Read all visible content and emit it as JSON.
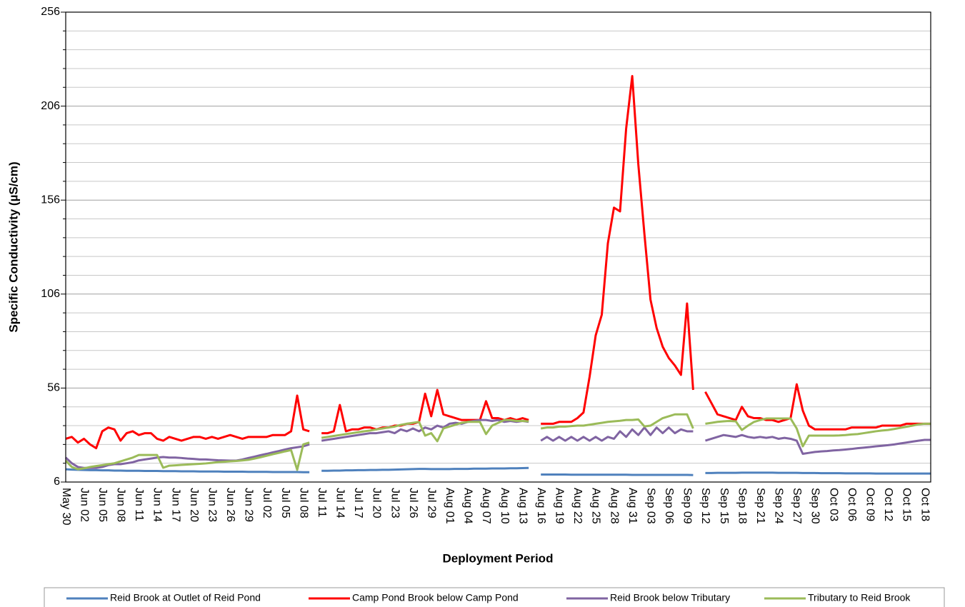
{
  "chart_data": {
    "type": "line",
    "x_label": "Deployment Period",
    "y_label": "Specific Conductivity (µS/cm)",
    "categories": [
      "May 30",
      null,
      null,
      "Jun 02",
      null,
      null,
      "Jun 05",
      null,
      null,
      "Jun 08",
      null,
      null,
      "Jun 11",
      null,
      null,
      "Jun 14",
      null,
      null,
      "Jun 17",
      null,
      null,
      "Jun 20",
      null,
      null,
      "Jun 23",
      null,
      null,
      "Jun 26",
      null,
      null,
      "Jun 29",
      null,
      null,
      "Jul 02",
      null,
      null,
      "Jul 05",
      null,
      null,
      "Jul 08",
      null,
      null,
      "Jul 11",
      null,
      null,
      "Jul 14",
      null,
      null,
      "Jul 17",
      null,
      null,
      "Jul 20",
      null,
      null,
      "Jul 23",
      null,
      null,
      "Jul 26",
      null,
      null,
      "Jul 29",
      null,
      null,
      "Aug 01",
      null,
      null,
      "Aug 04",
      null,
      null,
      "Aug 07",
      null,
      null,
      "Aug 10",
      null,
      null,
      "Aug 13",
      null,
      null,
      "Aug 16",
      null,
      null,
      "Aug 19",
      null,
      null,
      "Aug 22",
      null,
      null,
      "Aug 25",
      null,
      null,
      "Aug 28",
      null,
      null,
      "Aug 31",
      null,
      null,
      "Sep 03",
      null,
      null,
      "Sep 06",
      null,
      null,
      "Sep 09",
      null,
      null,
      "Sep 12",
      null,
      null,
      "Sep 15",
      null,
      null,
      "Sep 18",
      null,
      null,
      "Sep 21",
      null,
      null,
      "Sep 24",
      null,
      null,
      "Sep 27",
      null,
      null,
      "Sep 30",
      null,
      null,
      "Oct 03",
      null,
      null,
      "Oct 06",
      null,
      null,
      "Oct 09",
      null,
      null,
      "Oct 12",
      null,
      null,
      "Oct 15",
      null,
      null,
      "Oct 18",
      null
    ],
    "series": [
      {
        "name": "Reid Brook at Outlet of Reid Pond",
        "color": "#4f81bd",
        "values": [
          12.8,
          12.6,
          12.5,
          12.4,
          12.3,
          12.3,
          12.2,
          12.2,
          12.1,
          12.1,
          12.0,
          12.0,
          12.0,
          11.9,
          11.9,
          11.9,
          11.8,
          11.8,
          11.8,
          11.7,
          11.7,
          11.7,
          11.6,
          11.6,
          11.6,
          11.6,
          11.5,
          11.5,
          11.5,
          11.5,
          11.4,
          11.4,
          11.4,
          11.4,
          11.3,
          11.3,
          11.3,
          11.3,
          11.3,
          11.2,
          11.2,
          null,
          12.0,
          12.0,
          12.1,
          12.1,
          12.2,
          12.2,
          12.3,
          12.3,
          12.4,
          12.4,
          12.5,
          12.5,
          12.6,
          12.7,
          12.8,
          12.9,
          13.0,
          13.0,
          12.9,
          12.9,
          12.9,
          12.9,
          13.0,
          13.0,
          13.0,
          13.1,
          13.1,
          13.1,
          13.2,
          13.2,
          13.2,
          13.3,
          13.3,
          13.4,
          13.5,
          null,
          10.0,
          10.0,
          10.0,
          10.0,
          10.0,
          9.9,
          9.9,
          9.9,
          9.9,
          9.9,
          9.9,
          9.9,
          9.9,
          9.9,
          9.9,
          9.8,
          9.8,
          9.8,
          9.8,
          9.8,
          9.8,
          9.8,
          9.8,
          9.8,
          9.8,
          9.7,
          null,
          10.8,
          10.8,
          10.9,
          10.9,
          10.9,
          10.9,
          11.0,
          11.0,
          11.0,
          11.0,
          11.0,
          11.0,
          10.9,
          10.9,
          10.9,
          10.9,
          10.8,
          10.8,
          10.8,
          10.7,
          10.7,
          10.7,
          10.7,
          10.6,
          10.6,
          10.6,
          10.6,
          10.6,
          10.5,
          10.5,
          10.5,
          10.5,
          10.5,
          10.5,
          10.5,
          10.5,
          10.5,
          10.5
        ]
      },
      {
        "name": "Camp Pond Brook below Camp Pond",
        "color": "#ff0000",
        "values": [
          29,
          30,
          27,
          29,
          26,
          24,
          33,
          35,
          34,
          28,
          32,
          33,
          31,
          32,
          32,
          29,
          28,
          30,
          29,
          28,
          29,
          30,
          30,
          29,
          30,
          29,
          30,
          31,
          30,
          29,
          30,
          30,
          30,
          30,
          31,
          31,
          31,
          33,
          52,
          34,
          33,
          null,
          32,
          32,
          33,
          47,
          33,
          34,
          34,
          35,
          35,
          34,
          35,
          35,
          36,
          36,
          37,
          37,
          38,
          53,
          41,
          55,
          42,
          41,
          40,
          39,
          39,
          39,
          39,
          49,
          40,
          40,
          39,
          40,
          39,
          40,
          39,
          null,
          37,
          37,
          37,
          38,
          38,
          38,
          40,
          43,
          62,
          84,
          95,
          133,
          152,
          150,
          194,
          222,
          175,
          138,
          103,
          88,
          78,
          72,
          68,
          63,
          101,
          55,
          null,
          54,
          48,
          42,
          41,
          40,
          39,
          46,
          41,
          40,
          40,
          39,
          39,
          38,
          39,
          40,
          58,
          44,
          36,
          34,
          34,
          34,
          34,
          34,
          34,
          35,
          35,
          35,
          35,
          35,
          36,
          36,
          36,
          36,
          37,
          37,
          37,
          37,
          37
        ]
      },
      {
        "name": "Reid Brook below Tributary",
        "color": "#8064a2",
        "values": [
          19,
          16,
          14,
          13.5,
          13.5,
          13.5,
          14,
          15,
          15.5,
          15.5,
          16,
          16.5,
          17.5,
          18,
          18.5,
          19,
          19.3,
          19,
          19,
          18.8,
          18.5,
          18.3,
          18,
          18,
          17.8,
          17.6,
          17.5,
          17.4,
          17.4,
          18,
          18.8,
          19.5,
          20.3,
          21,
          21.8,
          22.5,
          23.3,
          24,
          24.5,
          25,
          26,
          null,
          28,
          28.5,
          29,
          29.5,
          30,
          30.5,
          31,
          31.5,
          32,
          32,
          32.5,
          33,
          32,
          34,
          33,
          34.5,
          33,
          35,
          34,
          36,
          35,
          37,
          37.5,
          37,
          38,
          38.5,
          39,
          39,
          38.5,
          39,
          38,
          38.5,
          38,
          38.5,
          38,
          null,
          28,
          30,
          28,
          30,
          28,
          30,
          28,
          30,
          28,
          30,
          28,
          30,
          29,
          33,
          30,
          34,
          31,
          35,
          31,
          35,
          32,
          35,
          32,
          34,
          33,
          33,
          null,
          28,
          29,
          30,
          31,
          30.5,
          30,
          31,
          30,
          29.5,
          30,
          29.5,
          30,
          29,
          29.5,
          29,
          28,
          21,
          21.5,
          22,
          22.3,
          22.5,
          22.8,
          23,
          23.3,
          23.6,
          24,
          24.3,
          24.6,
          25,
          25.3,
          25.6,
          26,
          26.5,
          27,
          27.5,
          28,
          28.4,
          28.4
        ]
      },
      {
        "name": "Tributary to Reid Brook",
        "color": "#9bbb59",
        "values": [
          17.4,
          14,
          12.8,
          13.3,
          14,
          14.5,
          15,
          15.5,
          16,
          17,
          18,
          19,
          20.4,
          20.4,
          20.4,
          20.4,
          13.6,
          14.7,
          14.9,
          15.1,
          15.3,
          15.5,
          15.7,
          15.9,
          16.2,
          16.6,
          16.8,
          17,
          17.2,
          17.5,
          17.8,
          18.5,
          19.2,
          20,
          20.8,
          21.5,
          22.3,
          23,
          12.5,
          26,
          27,
          null,
          29.5,
          30,
          30.5,
          31,
          31.5,
          32,
          32.5,
          33,
          33.4,
          34,
          34.5,
          35,
          35.5,
          36.4,
          37,
          37.5,
          38,
          30.7,
          32,
          27.7,
          34.5,
          35.5,
          36.5,
          37.5,
          38,
          38,
          38,
          31.5,
          36,
          37.5,
          39,
          39,
          38.5,
          38.5,
          38.3,
          null,
          34.5,
          35,
          35,
          35.5,
          35.5,
          35.8,
          36,
          36,
          36.5,
          37,
          37.5,
          38,
          38.3,
          38.6,
          39,
          39,
          39.3,
          35.6,
          36,
          38,
          40,
          41,
          42,
          42,
          42,
          34.5,
          null,
          37,
          37.5,
          38,
          38.3,
          38.5,
          38.3,
          33.7,
          36,
          38,
          39,
          39.8,
          39.8,
          39.8,
          39.8,
          39.8,
          34.5,
          25,
          30.7,
          30.7,
          30.7,
          30.7,
          30.7,
          30.8,
          31,
          31.3,
          31.5,
          32,
          32.5,
          33,
          33.4,
          33.7,
          34.2,
          34.8,
          35.4,
          36,
          36.7,
          37,
          37
        ]
      }
    ],
    "ylim": [
      6,
      256
    ],
    "yticks": [
      6,
      56,
      106,
      156,
      206,
      256
    ],
    "yminorticks": [
      16,
      26,
      36,
      46,
      66,
      76,
      86,
      96,
      116,
      126,
      136,
      146,
      166,
      176,
      186,
      196,
      216,
      226,
      236,
      246
    ],
    "grid": true,
    "legend": "bottom"
  }
}
